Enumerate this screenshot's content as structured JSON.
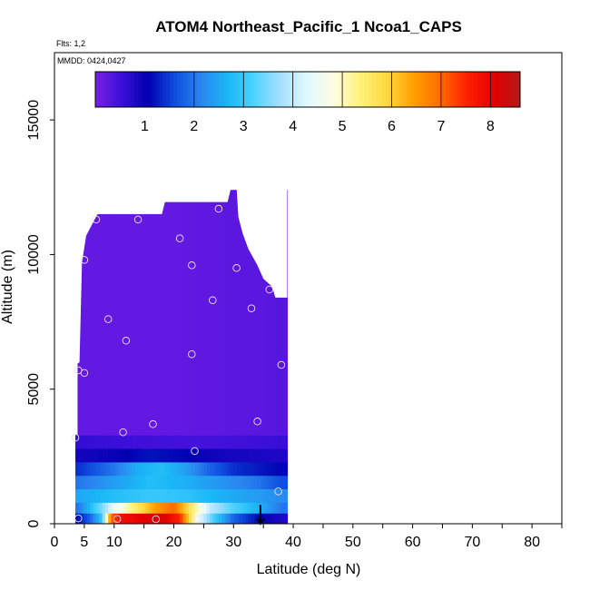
{
  "chart_data": {
    "type": "heatmap",
    "title": "ATOM4 Northeast_Pacific_1 Ncoa1_CAPS",
    "annotations": [
      "Flts: 1,2",
      "MMDD: 0424,0427"
    ],
    "xlabel": "Latitude (deg N)",
    "ylabel": "Altitude (m)",
    "xlim": [
      0,
      85
    ],
    "ylim": [
      0,
      17500
    ],
    "x_ticks": [
      0,
      5,
      10,
      20,
      30,
      40,
      50,
      60,
      70,
      80
    ],
    "y_ticks": [
      0,
      5000,
      10000,
      15000
    ],
    "colorbar": {
      "range": [
        0,
        8.6
      ],
      "ticks": [
        1,
        2,
        3,
        4,
        5,
        6,
        7,
        8
      ],
      "colors": [
        "#7b1fe6",
        "#3a0fd8",
        "#0000b0",
        "#0f4fe0",
        "#2a86f0",
        "#1ab8f6",
        "#4fd3ff",
        "#a8e0ff",
        "#e2f8ff",
        "#fffde0",
        "#fff176",
        "#ffd740",
        "#ff9f00",
        "#ff6a00",
        "#ff2000",
        "#e40000",
        "#b31a1a"
      ]
    },
    "data_region": {
      "lat_range": [
        3.5,
        39
      ],
      "alt_top_max": 12400
    },
    "layers": [
      {
        "alt": [
          0,
          400
        ],
        "values": [
          [
            4,
            1.2
          ],
          [
            6,
            1.8
          ],
          [
            8,
            3.0
          ],
          [
            9.5,
            7.0
          ],
          [
            11,
            7.8
          ],
          [
            14,
            8.0
          ],
          [
            18,
            8.2
          ],
          [
            21,
            7.5
          ],
          [
            24,
            4.5
          ],
          [
            27,
            3.0
          ],
          [
            30,
            1.8
          ],
          [
            35,
            1.0
          ],
          [
            38,
            0.8
          ]
        ]
      },
      {
        "alt": [
          400,
          800
        ],
        "values": [
          [
            4,
            2.0
          ],
          [
            8,
            3.5
          ],
          [
            10,
            4.5
          ],
          [
            13,
            5.3
          ],
          [
            17,
            6.5
          ],
          [
            20,
            7.0
          ],
          [
            23,
            5.5
          ],
          [
            26,
            4.0
          ],
          [
            30,
            3.2
          ],
          [
            35,
            2.5
          ],
          [
            38,
            2.0
          ]
        ]
      },
      {
        "alt": [
          800,
          1300
        ],
        "values": [
          [
            4,
            2.5
          ],
          [
            10,
            2.8
          ],
          [
            16,
            3.0
          ],
          [
            22,
            2.9
          ],
          [
            28,
            2.6
          ],
          [
            34,
            2.4
          ],
          [
            38,
            2.2
          ]
        ]
      },
      {
        "alt": [
          1300,
          1800
        ],
        "values": [
          [
            4,
            2.0
          ],
          [
            10,
            2.4
          ],
          [
            16,
            2.8
          ],
          [
            22,
            2.6
          ],
          [
            28,
            2.3
          ],
          [
            34,
            2.0
          ],
          [
            38,
            1.6
          ]
        ]
      },
      {
        "alt": [
          1800,
          2300
        ],
        "values": [
          [
            4,
            1.4
          ],
          [
            10,
            2.0
          ],
          [
            14,
            2.6
          ],
          [
            18,
            2.8
          ],
          [
            22,
            2.4
          ],
          [
            26,
            1.8
          ],
          [
            30,
            1.4
          ],
          [
            38,
            1.1
          ]
        ]
      },
      {
        "alt": [
          2300,
          2800
        ],
        "values": [
          [
            4,
            0.9
          ],
          [
            10,
            1.0
          ],
          [
            16,
            1.2
          ],
          [
            22,
            1.1
          ],
          [
            28,
            0.9
          ],
          [
            38,
            0.8
          ]
        ]
      },
      {
        "alt": [
          2800,
          3300
        ],
        "values": [
          [
            4,
            0.6
          ],
          [
            14,
            0.5
          ],
          [
            24,
            0.45
          ],
          [
            34,
            0.5
          ],
          [
            38,
            0.55
          ]
        ]
      },
      {
        "alt": [
          3300,
          12400
        ],
        "values": [
          [
            4,
            0.2
          ],
          [
            20,
            0.2
          ],
          [
            38,
            0.3
          ]
        ]
      }
    ],
    "profile_markers": [
      {
        "lat": 4,
        "alt": 200
      },
      {
        "lat": 10.5,
        "alt": 180
      },
      {
        "lat": 17,
        "alt": 170
      },
      {
        "lat": 24,
        "alt": 180
      },
      {
        "lat": 37.5,
        "alt": 1200
      },
      {
        "lat": 3.5,
        "alt": 3200
      },
      {
        "lat": 11.5,
        "alt": 3400
      },
      {
        "lat": 16.5,
        "alt": 3700
      },
      {
        "lat": 23.5,
        "alt": 2700
      },
      {
        "lat": 34,
        "alt": 3800
      },
      {
        "lat": 4,
        "alt": 5700
      },
      {
        "lat": 5,
        "alt": 5600
      },
      {
        "lat": 38,
        "alt": 5900
      },
      {
        "lat": 12,
        "alt": 6800
      },
      {
        "lat": 23,
        "alt": 6300
      },
      {
        "lat": 9,
        "alt": 7600
      },
      {
        "lat": 26.5,
        "alt": 8300
      },
      {
        "lat": 33,
        "alt": 8000
      },
      {
        "lat": 36,
        "alt": 8700
      },
      {
        "lat": 5,
        "alt": 9800
      },
      {
        "lat": 23,
        "alt": 9600
      },
      {
        "lat": 30.5,
        "alt": 9500
      },
      {
        "lat": 21,
        "alt": 10600
      },
      {
        "lat": 7,
        "alt": 11300
      },
      {
        "lat": 14,
        "alt": 11300
      },
      {
        "lat": 27.5,
        "alt": 11700
      }
    ],
    "arrow": {
      "lat": 34.5,
      "alt_from": 700,
      "alt_to": 0
    }
  }
}
